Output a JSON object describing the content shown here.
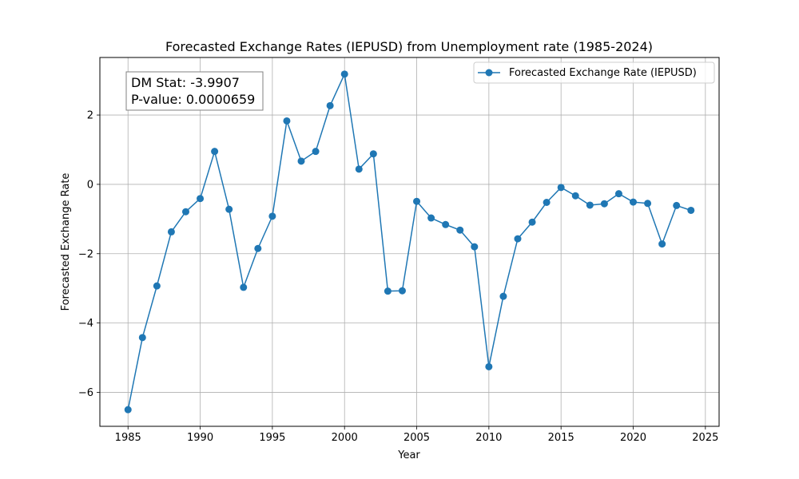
{
  "chart_data": {
    "type": "line",
    "title": "Forecasted Exchange Rates (IEPUSD) from Unemployment rate (1985-2024)",
    "xlabel": "Year",
    "ylabel": "Forecasted Exchange Rate",
    "xlim": [
      1983.05,
      2025.95
    ],
    "ylim": [
      -6.98,
      3.66
    ],
    "xticks": [
      1985,
      1990,
      1995,
      2000,
      2005,
      2010,
      2015,
      2020,
      2025
    ],
    "yticks": [
      -6,
      -4,
      -2,
      0,
      2
    ],
    "ytick_labels": [
      "−6",
      "−4",
      "−2",
      "0",
      "2"
    ],
    "grid": true,
    "legend_position": "upper right",
    "annotation": {
      "line1": "DM Stat: -3.9907",
      "line2": "P-value: 0.0000659"
    },
    "series": [
      {
        "name": "Forecasted Exchange Rate (IEPUSD)",
        "color": "#1f77b4",
        "marker": "circle",
        "x": [
          1985,
          1986,
          1987,
          1988,
          1989,
          1990,
          1991,
          1992,
          1993,
          1994,
          1995,
          1996,
          1997,
          1998,
          1999,
          2000,
          2001,
          2002,
          2003,
          2004,
          2005,
          2006,
          2007,
          2008,
          2009,
          2010,
          2011,
          2012,
          2013,
          2014,
          2015,
          2016,
          2017,
          2018,
          2019,
          2020,
          2021,
          2022,
          2023,
          2024
        ],
        "y": [
          -6.5,
          -4.42,
          -2.93,
          -1.37,
          -0.79,
          -0.41,
          0.95,
          -0.72,
          -2.97,
          -1.85,
          -0.92,
          1.83,
          0.67,
          0.95,
          2.27,
          3.18,
          0.44,
          0.88,
          -3.08,
          -3.07,
          -0.49,
          -0.97,
          -1.16,
          -1.32,
          -1.8,
          -5.26,
          -3.23,
          -1.57,
          -1.09,
          -0.52,
          -0.09,
          -0.33,
          -0.6,
          -0.56,
          -0.27,
          -0.51,
          -0.55,
          -1.72,
          -0.61,
          -0.75
        ]
      }
    ]
  }
}
